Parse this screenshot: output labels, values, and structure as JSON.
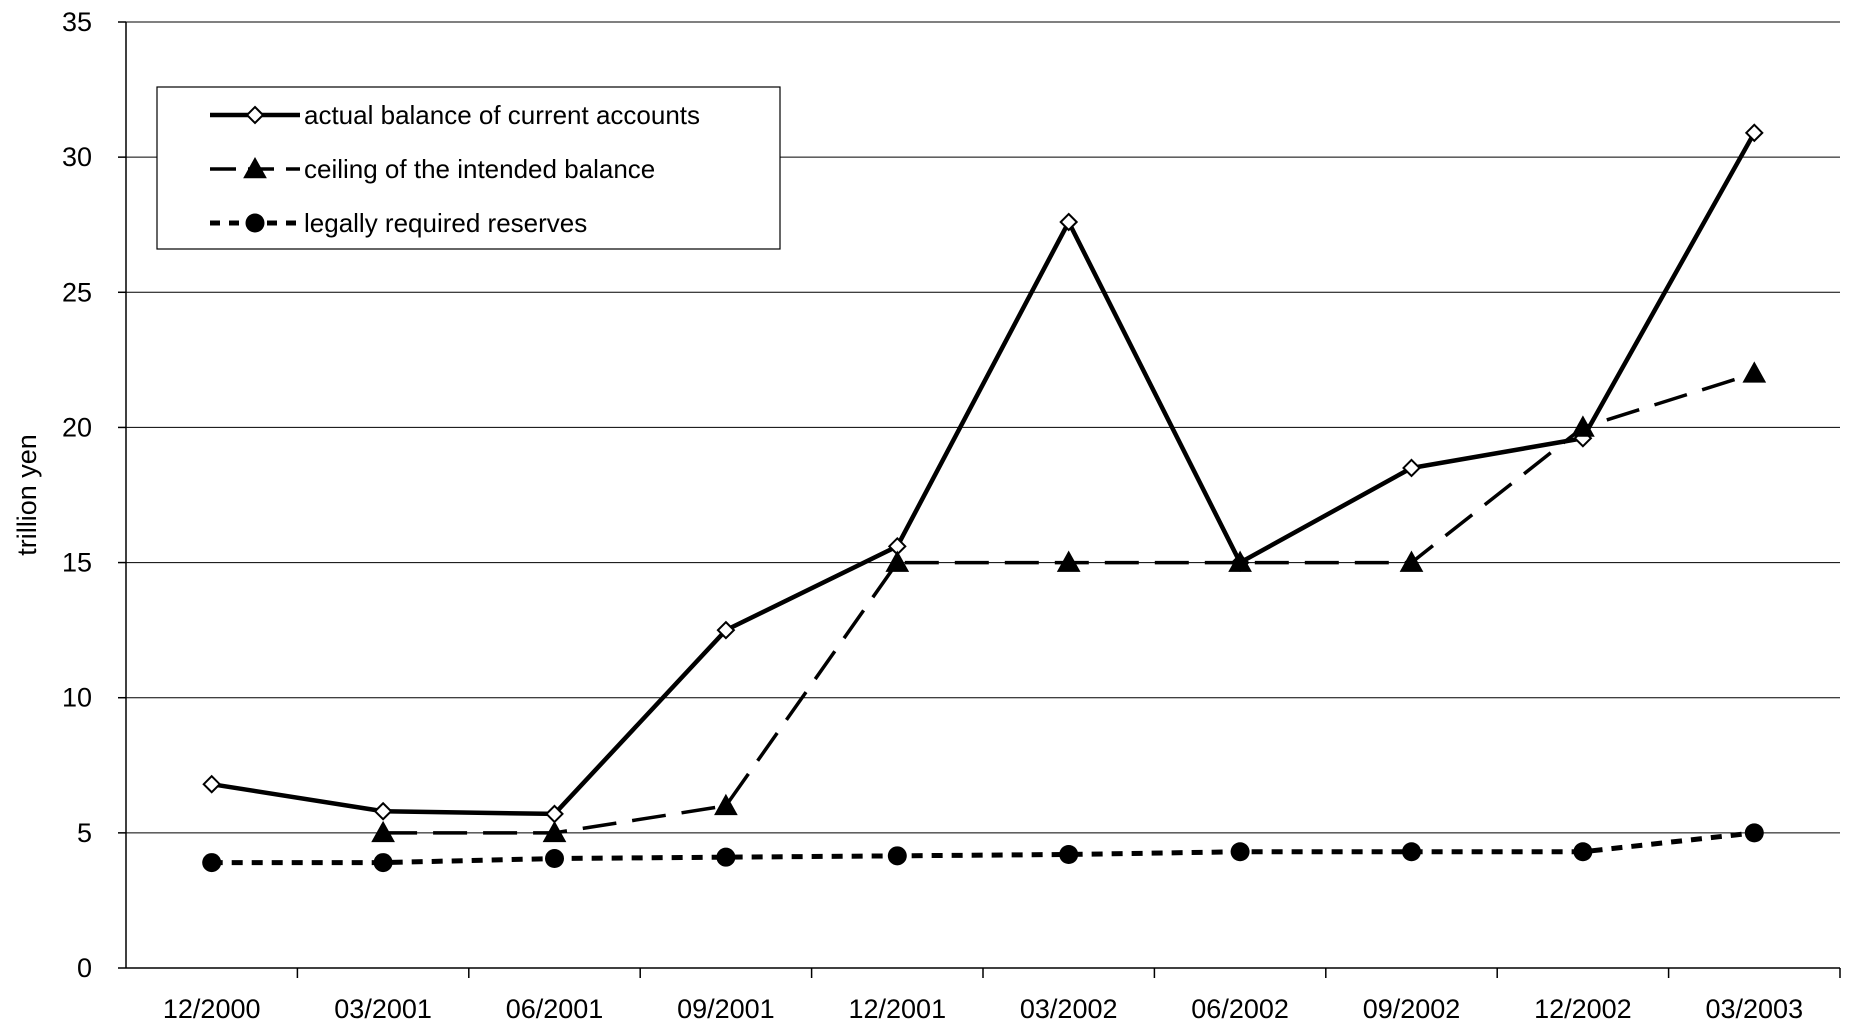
{
  "chart_data": {
    "type": "line",
    "title": "",
    "xlabel": "",
    "ylabel": "trillion yen",
    "categories": [
      "12/2000",
      "03/2001",
      "06/2001",
      "09/2001",
      "12/2001",
      "03/2002",
      "06/2002",
      "09/2002",
      "12/2002",
      "03/2003"
    ],
    "ylim": [
      0,
      35
    ],
    "yticks": [
      0,
      5,
      10,
      15,
      20,
      25,
      30,
      35
    ],
    "grid": "horizontal",
    "legend_position": "top-left",
    "series": [
      {
        "name": "actual balance of current accounts",
        "marker": "open-diamond",
        "line_style": "solid",
        "color": "#000000",
        "values": [
          6.8,
          5.8,
          5.7,
          12.5,
          15.6,
          27.6,
          15.0,
          18.5,
          19.6,
          30.9
        ]
      },
      {
        "name": "ceiling of the intended balance",
        "marker": "filled-triangle",
        "line_style": "long-dash",
        "color": "#000000",
        "values": [
          null,
          5.0,
          5.0,
          6.0,
          15.0,
          15.0,
          15.0,
          15.0,
          20.0,
          22.0
        ]
      },
      {
        "name": "legally required reserves",
        "marker": "filled-circle",
        "line_style": "dotted",
        "color": "#000000",
        "values": [
          3.9,
          3.9,
          4.05,
          4.1,
          4.15,
          4.2,
          4.3,
          4.3,
          4.3,
          5.0
        ]
      }
    ]
  }
}
